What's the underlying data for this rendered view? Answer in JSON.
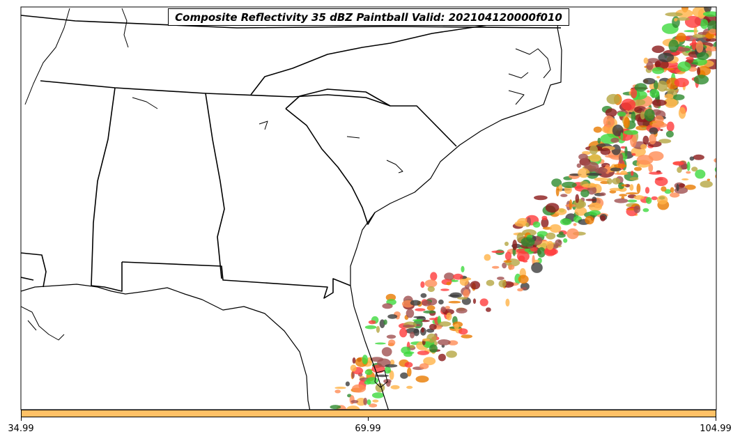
{
  "title": "Composite Reflectivity 35 dBZ Paintball Valid: 202104120000f010",
  "colorbar": {
    "color": "#ffc166",
    "ticks": [
      "34.99",
      "69.99",
      "104.99"
    ]
  },
  "colors": {
    "member_palette": [
      "#ff3b3b",
      "#e87a00",
      "#3fd93f",
      "#2e8b2e",
      "#8b1a1a",
      "#3c3c3c",
      "#b5a642",
      "#ff8c55",
      "#ffb347",
      "#a05050"
    ]
  }
}
